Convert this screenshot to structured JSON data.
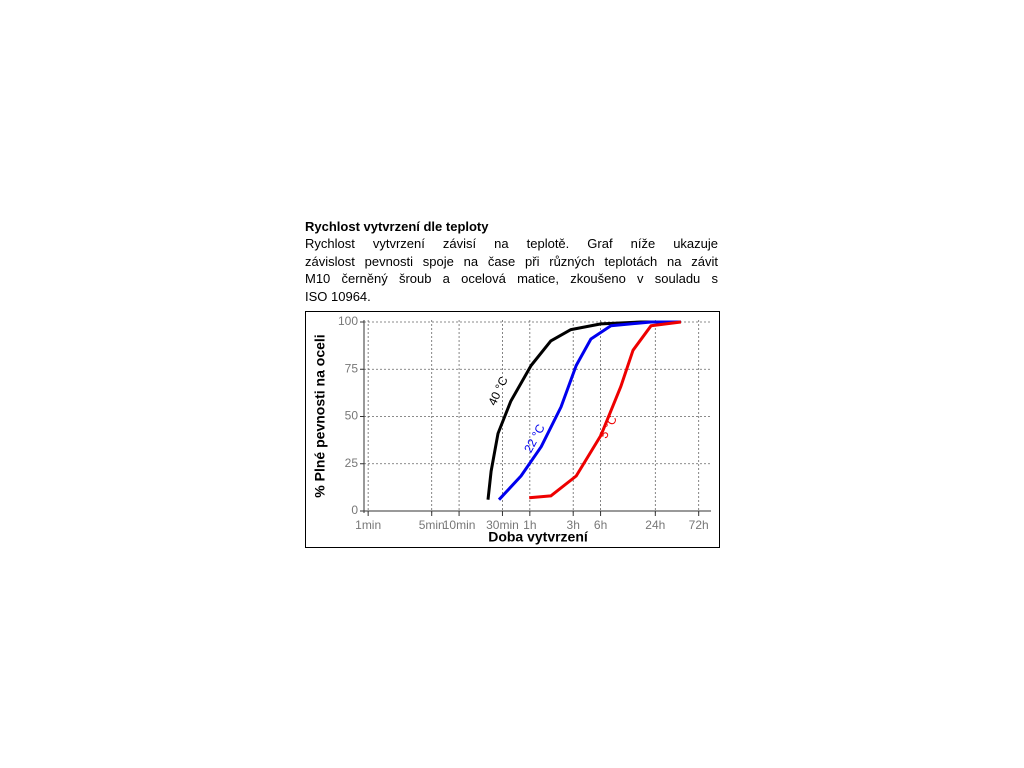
{
  "header": {
    "title": "Rychlost vytvrzení dle teploty"
  },
  "paragraph": {
    "lines": [
      "Rychlost vytvrzení závisí na teplotě. Graf níže ukazuje",
      "závislost pevnosti spoje na čase při různých teplotách na závit",
      "M10 černěný šroub a ocelová matice, zkoušeno v souladu s",
      "ISO 10964."
    ]
  },
  "chart_data": {
    "type": "line",
    "x_label": "Doba vytvrzení",
    "y_label": "% Plné pevnosti na oceli",
    "x_scale": "log",
    "grid": true,
    "xlim": [
      0.9,
      5900
    ],
    "ylim": [
      0,
      100
    ],
    "xticks": [
      {
        "value": 1,
        "label": "1min"
      },
      {
        "value": 5,
        "label": "5min"
      },
      {
        "value": 10,
        "label": "10min"
      },
      {
        "value": 30,
        "label": "30min"
      },
      {
        "value": 60,
        "label": "1h"
      },
      {
        "value": 180,
        "label": "3h"
      },
      {
        "value": 360,
        "label": "6h"
      },
      {
        "value": 1440,
        "label": "24h"
      },
      {
        "value": 4320,
        "label": "72h"
      }
    ],
    "yticks": [
      0,
      25,
      50,
      75,
      100
    ],
    "series": [
      {
        "name": "40 °C",
        "color": "#000000",
        "x": [
          20.8,
          22.5,
          26.8,
          37,
          62,
          102,
          170,
          363,
          1000,
          2750
        ],
        "values": [
          6,
          21,
          41,
          58,
          77,
          90,
          96,
          99,
          100,
          100
        ]
      },
      {
        "name": "22 °C",
        "color": "#0000ee",
        "x": [
          27.5,
          48,
          80,
          132,
          194,
          282,
          468,
          1290,
          2750
        ],
        "values": [
          6,
          18.5,
          34,
          55,
          77,
          91,
          98,
          100,
          100
        ]
      },
      {
        "name": "5 °C",
        "color": "#ee0000",
        "x": [
          59,
          102,
          194,
          363,
          603,
          818,
          1290,
          2750
        ],
        "values": [
          7,
          8,
          18.5,
          40,
          66,
          85,
          98,
          100
        ]
      }
    ]
  }
}
